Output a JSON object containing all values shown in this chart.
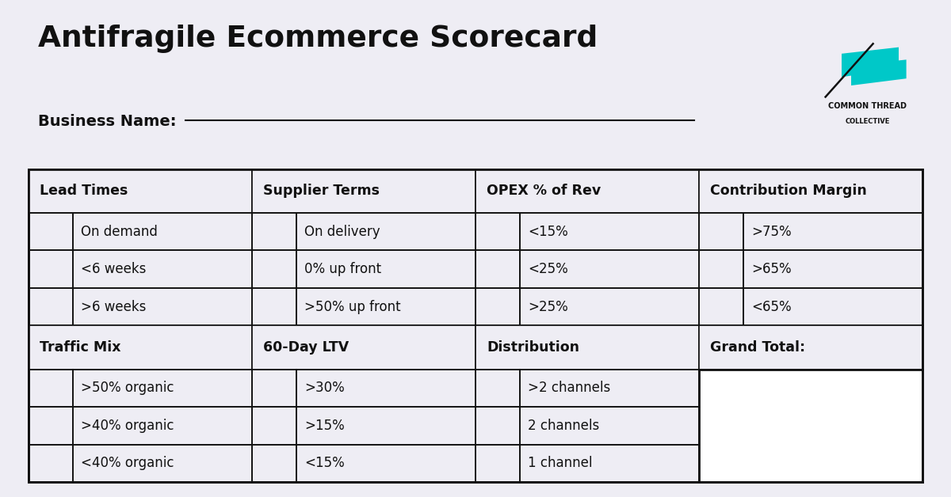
{
  "title": "Antifragile Ecommerce Scorecard",
  "business_label": "Business Name:",
  "bg_color": "#eeedf4",
  "table_bg": "#eeedf4",
  "header_bg": "#eeedf4",
  "border_color": "#111111",
  "text_color": "#111111",
  "logo_text1": "COMMON THREAD",
  "logo_text2": "COLLECTIVE",
  "logo_color": "#00c8c8",
  "columns": [
    {
      "header": "Lead Times",
      "rows": [
        "On demand",
        "<6 weeks",
        ">6 weeks"
      ],
      "sub_header": "Traffic Mix",
      "sub_rows": [
        ">50% organic",
        ">40% organic",
        "<40% organic"
      ]
    },
    {
      "header": "Supplier Terms",
      "rows": [
        "On delivery",
        "0% up front",
        ">50% up front"
      ],
      "sub_header": "60-Day LTV",
      "sub_rows": [
        ">30%",
        ">15%",
        "<15%"
      ]
    },
    {
      "header": "OPEX % of Rev",
      "rows": [
        "<15%",
        "<25%",
        ">25%"
      ],
      "sub_header": "Distribution",
      "sub_rows": [
        ">2 channels",
        "2 channels",
        "1 channel"
      ]
    },
    {
      "header": "Contribution Margin",
      "rows": [
        ">75%",
        ">65%",
        "<65%"
      ],
      "sub_header": "Grand Total:",
      "sub_rows": [
        "",
        "",
        ""
      ]
    }
  ]
}
